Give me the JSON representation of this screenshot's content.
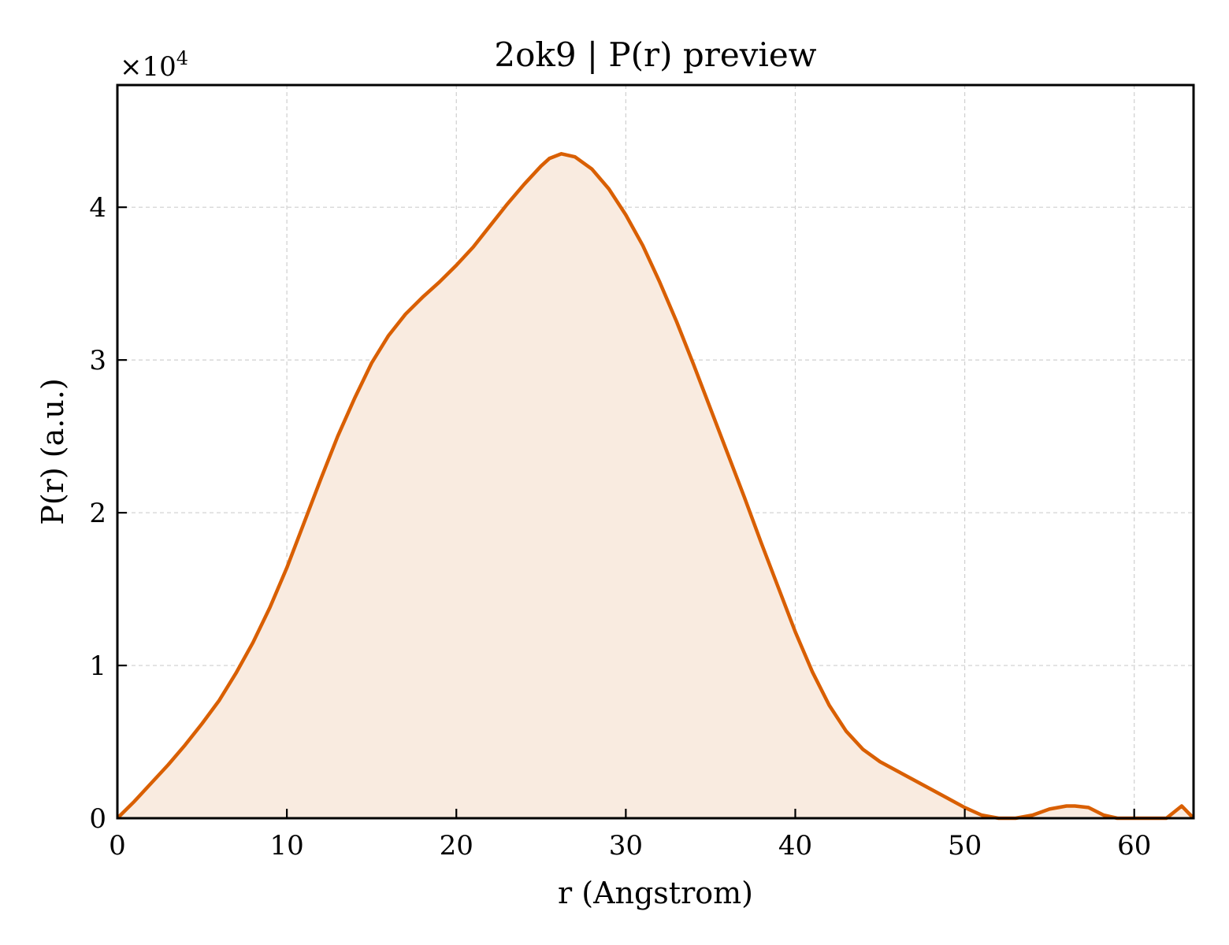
{
  "chart_data": {
    "type": "area",
    "title": "2ok9 | P(r) preview",
    "xlabel": "r (Angstrom)",
    "ylabel": "P(r) (a.u.)",
    "y_offset_label": "×10",
    "y_offset_exponent": "4",
    "xlim": [
      0,
      63.5
    ],
    "ylim": [
      0,
      4.8
    ],
    "x_ticks": [
      0,
      10,
      20,
      30,
      40,
      50,
      60
    ],
    "y_ticks": [
      0,
      1,
      2,
      3,
      4
    ],
    "x_tick_labels": [
      "0",
      "10",
      "20",
      "30",
      "40",
      "50",
      "60"
    ],
    "y_tick_labels": [
      "0",
      "1",
      "2",
      "3",
      "4"
    ],
    "grid": true,
    "legend": "none",
    "line_color": "#d95f02",
    "fill_color": "#f9ebe0",
    "series": [
      {
        "x": [
          0,
          1,
          2,
          3,
          4,
          5,
          6,
          7,
          8,
          9,
          10,
          11,
          12,
          13,
          14,
          15,
          16,
          17,
          18,
          19,
          20,
          21,
          22,
          23,
          24,
          25,
          25.5,
          26.2,
          27,
          28,
          29,
          30,
          31,
          32,
          33,
          34,
          35,
          36,
          37,
          38,
          39,
          40,
          41,
          42,
          43,
          44,
          45,
          46,
          47,
          48,
          49,
          50,
          51,
          52,
          53,
          54,
          55,
          56,
          56.5,
          57.3,
          58.2,
          59,
          59.5,
          60.3,
          61,
          61.9,
          62.8,
          63.5
        ],
        "values": [
          0,
          0.11,
          0.23,
          0.35,
          0.48,
          0.62,
          0.77,
          0.95,
          1.15,
          1.38,
          1.64,
          1.93,
          2.22,
          2.5,
          2.75,
          2.98,
          3.16,
          3.3,
          3.41,
          3.51,
          3.62,
          3.74,
          3.88,
          4.02,
          4.15,
          4.27,
          4.32,
          4.35,
          4.33,
          4.25,
          4.12,
          3.95,
          3.75,
          3.51,
          3.25,
          2.97,
          2.68,
          2.39,
          2.1,
          1.8,
          1.51,
          1.22,
          0.96,
          0.74,
          0.57,
          0.45,
          0.37,
          0.31,
          0.25,
          0.19,
          0.13,
          0.07,
          0.02,
          0.0,
          0.0,
          0.02,
          0.06,
          0.08,
          0.08,
          0.07,
          0.02,
          0.0,
          0.0,
          0.0,
          0.0,
          0.0,
          0.08,
          0.0
        ]
      }
    ]
  }
}
